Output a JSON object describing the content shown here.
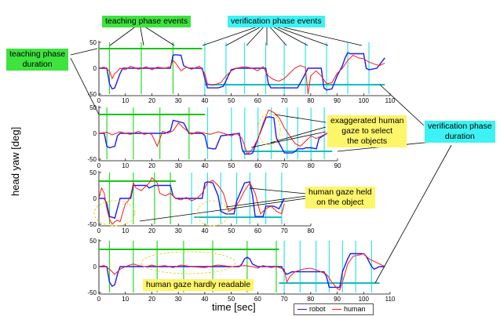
{
  "labels": {
    "teaching_events": "teaching phase events",
    "verification_events": "verification phase events",
    "teaching_duration": "teaching phase\nduration",
    "verification_duration": "verification phase\nduration",
    "exaggerated": "exaggerated human\ngaze to select\nthe objects",
    "gaze_held": "human gaze held\non the object",
    "hardly_readable": "human gaze hardly readable",
    "ylabel": "head yaw [deg]",
    "xlabel": "time [sec]",
    "legend_robot": "robot",
    "legend_human": "human"
  },
  "colors": {
    "robot": "#1a1aff",
    "human": "#ff1a1a",
    "teaching_bar": "#16c616",
    "verification_bar": "#18bcbc",
    "teaching_event": "#22dd22",
    "verification_event": "#2ee6e6"
  },
  "chart_data": [
    {
      "type": "line",
      "xlim": [
        0,
        110
      ],
      "ylim": [
        -50,
        50
      ],
      "xticks": [
        "0",
        "10",
        "20",
        "30",
        "40",
        "50",
        "60",
        "70",
        "80",
        "90",
        "100",
        "110"
      ],
      "yticks": [
        "50",
        "0",
        "-50"
      ],
      "teaching_events": [
        4,
        16,
        28
      ],
      "verification_events": [
        40,
        48,
        55,
        63,
        70,
        78,
        86,
        94,
        102
      ],
      "teaching_duration": [
        0,
        39
      ],
      "verification_duration": [
        40,
        108
      ],
      "series": [
        {
          "name": "robot",
          "x": [
            0,
            3,
            4,
            5,
            6,
            8,
            9,
            10,
            25,
            27,
            28,
            29,
            31,
            32,
            34,
            39,
            40,
            41,
            43,
            45,
            47,
            50,
            52,
            54,
            56,
            58,
            61,
            63,
            64,
            65,
            67,
            70,
            73,
            75,
            77,
            79,
            81,
            84,
            85,
            86,
            88,
            90,
            92,
            93,
            94,
            95,
            100,
            101,
            102,
            105,
            108
          ],
          "y": [
            0,
            0,
            -30,
            -40,
            -38,
            -10,
            0,
            0,
            0,
            0,
            25,
            26,
            25,
            5,
            0,
            0,
            -20,
            -38,
            -38,
            -38,
            -35,
            -3,
            0,
            0,
            0,
            0,
            0,
            0,
            -30,
            -38,
            -38,
            -38,
            -38,
            -38,
            -20,
            0,
            0,
            0,
            -38,
            -42,
            -40,
            -15,
            5,
            20,
            30,
            28,
            28,
            0,
            -3,
            0,
            20
          ]
        },
        {
          "name": "human",
          "x": [
            0,
            2,
            4,
            5,
            6,
            7,
            8,
            10,
            12,
            15,
            18,
            20,
            22,
            25,
            27,
            28,
            29,
            31,
            33,
            35,
            38,
            40,
            41,
            43,
            46,
            48,
            50,
            52,
            55,
            58,
            60,
            62,
            64,
            66,
            68,
            70,
            72,
            74,
            76,
            78,
            79,
            80,
            82,
            84,
            86,
            88,
            90,
            92,
            94,
            96,
            98,
            100,
            102,
            104,
            106,
            108
          ],
          "y": [
            0,
            2,
            -5,
            -20,
            -10,
            -6,
            0,
            -3,
            4,
            -2,
            3,
            -3,
            2,
            0,
            3,
            15,
            10,
            -5,
            2,
            -2,
            4,
            -10,
            -30,
            -33,
            -28,
            -15,
            -5,
            0,
            3,
            0,
            -5,
            3,
            -15,
            -22,
            -25,
            -20,
            -10,
            0,
            5,
            2,
            -50,
            -15,
            -5,
            -15,
            -30,
            -28,
            -10,
            0,
            15,
            25,
            20,
            18,
            12,
            8,
            5,
            10
          ]
        }
      ]
    },
    {
      "type": "line",
      "xlim": [
        0,
        90
      ],
      "ylim": [
        -50,
        50
      ],
      "xticks": [
        "0",
        "10",
        "20",
        "30",
        "40",
        "50",
        "60",
        "70",
        "80",
        "90"
      ],
      "yticks": [
        "50",
        "0",
        "-50"
      ],
      "teaching_events": [
        3,
        13,
        23,
        34
      ],
      "verification_events": [
        41,
        50,
        55,
        60,
        65,
        71,
        75,
        80,
        85
      ],
      "teaching_duration": [
        0,
        40
      ],
      "verification_duration": [
        54,
        88
      ],
      "series": [
        {
          "name": "robot",
          "x": [
            0,
            2,
            3,
            4,
            6,
            7,
            8,
            22,
            24,
            25,
            27,
            28,
            32,
            34,
            37,
            39,
            40,
            41,
            43,
            44,
            46,
            53,
            54,
            55,
            57,
            58,
            60,
            63,
            64,
            66,
            67,
            70,
            73,
            74,
            75,
            77,
            78,
            80,
            82,
            83,
            86,
            88
          ],
          "y": [
            0,
            0,
            -25,
            -28,
            -25,
            -5,
            0,
            0,
            0,
            0,
            5,
            25,
            20,
            0,
            0,
            0,
            -5,
            -28,
            -30,
            -30,
            -5,
            0,
            -30,
            -40,
            -40,
            -38,
            -10,
            30,
            32,
            30,
            -10,
            -38,
            -38,
            -35,
            -30,
            -30,
            -28,
            -28,
            -30,
            -10,
            0,
            0
          ]
        },
        {
          "name": "human",
          "x": [
            0,
            3,
            5,
            8,
            10,
            12,
            15,
            17,
            19,
            20,
            22,
            24,
            26,
            28,
            30,
            32,
            35,
            37,
            40,
            42,
            45,
            47,
            50,
            52,
            54,
            56,
            58,
            60,
            62,
            64,
            66,
            68,
            70,
            72,
            74,
            76,
            78,
            80,
            82,
            84,
            86,
            88
          ],
          "y": [
            0,
            2,
            -3,
            3,
            0,
            -2,
            4,
            -2,
            0,
            -3,
            -25,
            4,
            0,
            5,
            20,
            10,
            -2,
            3,
            0,
            -2,
            3,
            0,
            -5,
            0,
            -10,
            -40,
            -30,
            -10,
            20,
            45,
            40,
            30,
            10,
            -5,
            -20,
            -25,
            -15,
            -5,
            -10,
            -5,
            0,
            2
          ]
        }
      ]
    },
    {
      "type": "line",
      "xlim": [
        0,
        80
      ],
      "ylim": [
        -50,
        50
      ],
      "xticks": [
        "0",
        "10",
        "20",
        "30",
        "40",
        "50",
        "60",
        "70",
        "80"
      ],
      "yticks": [
        "50",
        "0",
        "-50"
      ],
      "teaching_events": [
        4,
        13,
        21,
        27
      ],
      "verification_events": [
        35,
        41,
        46,
        52,
        57,
        63,
        69
      ],
      "teaching_duration": [
        0,
        29
      ],
      "verification_duration": [
        36,
        69
      ],
      "series": [
        {
          "name": "robot",
          "x": [
            0,
            2,
            3,
            4,
            6,
            8,
            12,
            13,
            14,
            18,
            19,
            21,
            24,
            25,
            27,
            28,
            29,
            31,
            33,
            36,
            39,
            40,
            41,
            43,
            45,
            46,
            48,
            51,
            52,
            55,
            57,
            58,
            59,
            62,
            63,
            66,
            68,
            70
          ],
          "y": [
            0,
            0,
            -10,
            -35,
            -38,
            0,
            0,
            25,
            25,
            25,
            20,
            25,
            25,
            25,
            25,
            5,
            0,
            0,
            0,
            0,
            0,
            30,
            32,
            30,
            5,
            -25,
            -30,
            -30,
            -5,
            30,
            32,
            5,
            -35,
            -35,
            -15,
            -15,
            -20,
            0
          ]
        },
        {
          "name": "human",
          "x": [
            0,
            1,
            2,
            3,
            4,
            5,
            6,
            7,
            8,
            10,
            11,
            12,
            13,
            14,
            16,
            18,
            19,
            20,
            21,
            22,
            23,
            25,
            27,
            29,
            31,
            33,
            35,
            37,
            39,
            41,
            43,
            45,
            47,
            49,
            51,
            53,
            55,
            57,
            59,
            61,
            63,
            65,
            67,
            69,
            70
          ],
          "y": [
            0,
            20,
            10,
            -20,
            -40,
            -50,
            -45,
            -42,
            -45,
            -10,
            -5,
            5,
            30,
            20,
            15,
            25,
            30,
            40,
            35,
            30,
            10,
            5,
            10,
            0,
            -3,
            2,
            -5,
            0,
            10,
            30,
            35,
            25,
            10,
            -25,
            -20,
            -5,
            15,
            30,
            10,
            -30,
            -20,
            -15,
            -25,
            -30,
            -10
          ]
        }
      ]
    },
    {
      "type": "line",
      "xlim": [
        0,
        110
      ],
      "ylim": [
        -50,
        50
      ],
      "xticks": [
        "0",
        "10",
        "20",
        "30",
        "40",
        "50",
        "60",
        "70",
        "80",
        "90",
        "100",
        "110"
      ],
      "yticks": [
        "50",
        "0",
        "-50"
      ],
      "teaching_events": [
        4,
        13,
        22,
        32,
        43,
        56,
        67
      ],
      "verification_events": [
        70,
        76,
        82,
        87,
        92,
        97,
        103
      ],
      "teaching_duration": [
        0,
        68
      ],
      "verification_duration": [
        68,
        106
      ],
      "series": [
        {
          "name": "robot",
          "x": [
            0,
            3,
            4,
            5,
            6,
            7,
            8,
            53,
            54,
            55,
            56,
            57,
            58,
            60,
            69,
            70,
            71,
            73,
            85,
            86,
            87,
            88,
            91,
            92,
            94,
            95,
            96,
            100,
            101,
            103,
            104,
            106,
            108
          ],
          "y": [
            0,
            0,
            -30,
            -38,
            -35,
            -15,
            0,
            0,
            5,
            15,
            18,
            15,
            5,
            0,
            0,
            -10,
            -15,
            -10,
            -10,
            -20,
            -40,
            -40,
            -40,
            -10,
            15,
            25,
            25,
            25,
            20,
            0,
            -5,
            0,
            0
          ]
        },
        {
          "name": "human",
          "x": [
            0,
            2,
            4,
            6,
            8,
            10,
            13,
            15,
            18,
            20,
            22,
            25,
            28,
            31,
            35,
            40,
            45,
            50,
            55,
            58,
            60,
            62,
            65,
            67,
            70,
            71,
            72,
            74,
            77,
            80,
            83,
            86,
            88,
            90,
            91,
            92,
            94,
            96,
            98,
            100,
            102,
            104,
            106,
            108
          ],
          "y": [
            0,
            2,
            -5,
            -15,
            -5,
            0,
            5,
            2,
            0,
            3,
            0,
            2,
            -2,
            3,
            0,
            -2,
            3,
            0,
            2,
            0,
            -3,
            2,
            -2,
            0,
            -5,
            -30,
            -20,
            -10,
            -5,
            -3,
            -8,
            -15,
            -30,
            -42,
            -45,
            -30,
            5,
            20,
            22,
            25,
            15,
            10,
            5,
            0
          ]
        }
      ]
    }
  ]
}
